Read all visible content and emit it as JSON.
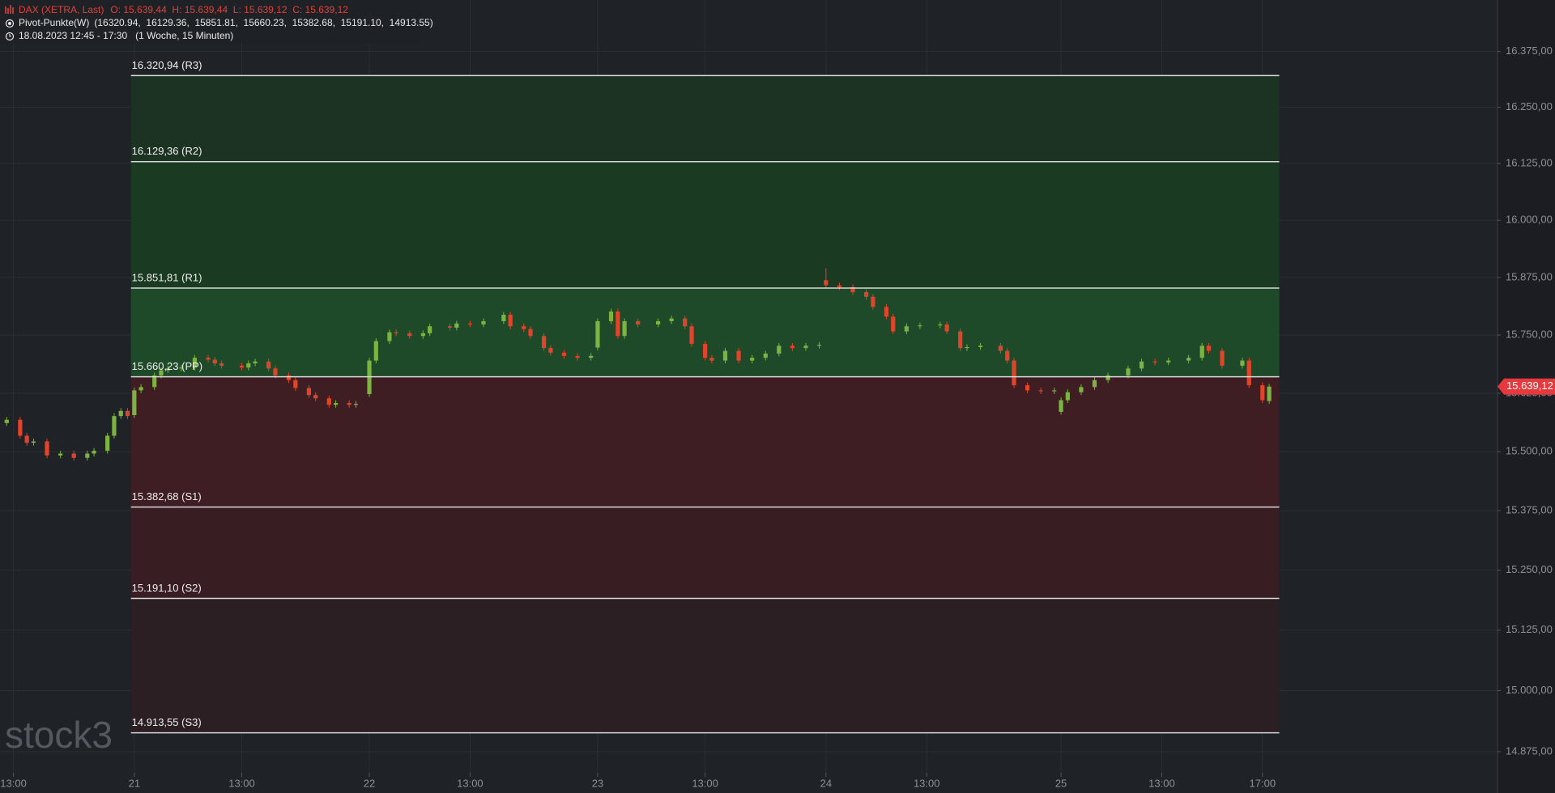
{
  "header": {
    "instrument": "DAX (XETRA, Last)",
    "ohlc": "O: 15.639,44  H: 15.639,44  L: 15.639,12  C: 15.639,12",
    "indicator": "Pivot-Punkte(W)",
    "indicator_values": "(16320.94,  16129.36,  15851.81,  15660.23,  15382.68,  15191.10,  14913.55)",
    "range": "18.08.2023 12:45 - 17:30",
    "interval": "(1 Woche, 15 Minuten)"
  },
  "watermark": "stock3",
  "chart_data": {
    "type": "candlestick",
    "x": [
      -19,
      -17,
      -16,
      -15,
      -13,
      -11,
      -9,
      -7,
      -6,
      -4,
      -3,
      -2,
      -1,
      0,
      1,
      3,
      4,
      5,
      7,
      9,
      11,
      12,
      13,
      16,
      17,
      18,
      20,
      21,
      23,
      24,
      26,
      27,
      29,
      30,
      32,
      33,
      35,
      36,
      38,
      39,
      41,
      43,
      44,
      47,
      48,
      50,
      52,
      55,
      56,
      58,
      59,
      61,
      62,
      64,
      66,
      68,
      69,
      71,
      72,
      73,
      75,
      78,
      80,
      82,
      83,
      85,
      86,
      88,
      90,
      92,
      94,
      96,
      98,
      100,
      102,
      103,
      105,
      107,
      109,
      110,
      112,
      113,
      115,
      117,
      120,
      121,
      123,
      124,
      126,
      129,
      130,
      131,
      133,
      135,
      137,
      138,
      139,
      141,
      143,
      145,
      148,
      150,
      152,
      154,
      157,
      159,
      160,
      162,
      165,
      166,
      168,
      169
    ],
    "open": [
      15561,
      15568,
      15534,
      15519,
      15522,
      15492,
      15496,
      15487,
      15496,
      15502,
      15534,
      15576,
      15587,
      15578,
      15631,
      15638,
      15663,
      15674,
      15678,
      15680,
      15701,
      15697,
      15689,
      15684,
      15680,
      15689,
      15693,
      15678,
      15663,
      15653,
      15636,
      15621,
      15614,
      15600,
      15604,
      15600,
      15623,
      15695,
      15737,
      15756,
      15754,
      15748,
      15754,
      15769,
      15766,
      15775,
      15773,
      15780,
      15794,
      15769,
      15763,
      15748,
      15722,
      15712,
      15705,
      15701,
      15723,
      15780,
      15801,
      15748,
      15780,
      15773,
      15780,
      15786,
      15769,
      15731,
      15701,
      15695,
      15716,
      15695,
      15701,
      15710,
      15727,
      15722,
      15727,
      15869,
      15858,
      15854,
      15843,
      15833,
      15811,
      15790,
      15758,
      15769,
      15771,
      15773,
      15758,
      15722,
      15724,
      15727,
      15716,
      15695,
      15642,
      15631,
      15629,
      15585,
      15610,
      15627,
      15638,
      15653,
      15663,
      15678,
      15693,
      15691,
      15695,
      15701,
      15727,
      15716,
      15684,
      15695,
      15642,
      15608
    ],
    "high": [
      15574,
      15574,
      15540,
      15528,
      15528,
      15502,
      15502,
      15502,
      15508,
      15540,
      15582,
      15593,
      15593,
      15637,
      15644,
      15669,
      15680,
      15684,
      15686,
      15707,
      15707,
      15703,
      15695,
      15690,
      15695,
      15699,
      15699,
      15684,
      15669,
      15659,
      15642,
      15627,
      15620,
      15610,
      15610,
      15608,
      15701,
      15743,
      15762,
      15762,
      15760,
      15760,
      15775,
      15775,
      15781,
      15781,
      15786,
      15800,
      15800,
      15775,
      15769,
      15754,
      15728,
      15718,
      15711,
      15711,
      15786,
      15807,
      15807,
      15786,
      15786,
      15786,
      15792,
      15792,
      15775,
      15737,
      15707,
      15722,
      15722,
      15707,
      15716,
      15733,
      15733,
      15733,
      15735,
      15895,
      15864,
      15860,
      15849,
      15839,
      15817,
      15796,
      15775,
      15777,
      15779,
      15779,
      15764,
      15730,
      15733,
      15733,
      15722,
      15701,
      15648,
      15637,
      15637,
      15616,
      15633,
      15644,
      15659,
      15669,
      15684,
      15699,
      15699,
      15701,
      15707,
      15733,
      15733,
      15722,
      15701,
      15701,
      15648,
      15645
    ],
    "low": [
      15555,
      15528,
      15513,
      15513,
      15486,
      15486,
      15481,
      15481,
      15490,
      15496,
      15528,
      15570,
      15570,
      15572,
      15625,
      15632,
      15657,
      15668,
      15672,
      15674,
      15691,
      15683,
      15678,
      15674,
      15674,
      15683,
      15672,
      15657,
      15647,
      15630,
      15615,
      15608,
      15594,
      15594,
      15594,
      15594,
      15617,
      15689,
      15731,
      15748,
      15742,
      15742,
      15748,
      15760,
      15760,
      15767,
      15767,
      15774,
      15763,
      15757,
      15742,
      15716,
      15706,
      15699,
      15695,
      15695,
      15717,
      15774,
      15742,
      15742,
      15767,
      15767,
      15774,
      15763,
      15725,
      15695,
      15689,
      15689,
      15689,
      15689,
      15695,
      15704,
      15716,
      15716,
      15721,
      15852,
      15848,
      15837,
      15827,
      15805,
      15784,
      15752,
      15752,
      15763,
      15765,
      15752,
      15716,
      15716,
      15718,
      15710,
      15689,
      15636,
      15625,
      15623,
      15623,
      15579,
      15604,
      15621,
      15632,
      15647,
      15657,
      15672,
      15685,
      15685,
      15689,
      15695,
      15710,
      15678,
      15678,
      15636,
      15604,
      15602
    ],
    "close": [
      15568,
      15534,
      15519,
      15522,
      15492,
      15496,
      15487,
      15496,
      15502,
      15534,
      15576,
      15587,
      15576,
      15631,
      15638,
      15663,
      15674,
      15678,
      15680,
      15701,
      15697,
      15689,
      15684,
      15680,
      15689,
      15693,
      15678,
      15663,
      15653,
      15636,
      15621,
      15614,
      15600,
      15604,
      15600,
      15602,
      15695,
      15737,
      15756,
      15754,
      15748,
      15754,
      15769,
      15766,
      15775,
      15773,
      15780,
      15794,
      15769,
      15763,
      15748,
      15722,
      15712,
      15705,
      15701,
      15705,
      15780,
      15801,
      15748,
      15780,
      15773,
      15780,
      15786,
      15769,
      15731,
      15701,
      15695,
      15716,
      15695,
      15701,
      15710,
      15727,
      15722,
      15727,
      15729,
      15858,
      15854,
      15843,
      15833,
      15811,
      15790,
      15758,
      15769,
      15771,
      15773,
      15758,
      15722,
      15724,
      15727,
      15716,
      15695,
      15642,
      15631,
      15629,
      15631,
      15610,
      15627,
      15638,
      15653,
      15663,
      15678,
      15693,
      15691,
      15695,
      15701,
      15727,
      15716,
      15684,
      15695,
      15642,
      15610,
      15639.12
    ],
    "up_color": "#7cb342",
    "down_color": "#e0452b",
    "xlim": [
      -20,
      203
    ],
    "xticks": [
      {
        "value": -18,
        "label": "13:00"
      },
      {
        "value": 0,
        "label": "21"
      },
      {
        "value": 16,
        "label": "13:00"
      },
      {
        "value": 35,
        "label": "22"
      },
      {
        "value": 50,
        "label": "13:00"
      },
      {
        "value": 69,
        "label": "23"
      },
      {
        "value": 85,
        "label": "13:00"
      },
      {
        "value": 103,
        "label": "24"
      },
      {
        "value": 118,
        "label": "13:00"
      },
      {
        "value": 138,
        "label": "25"
      },
      {
        "value": 153,
        "label": "13:00"
      },
      {
        "value": 168,
        "label": "17:00"
      }
    ],
    "ylim": [
      14832,
      16491
    ],
    "log_scale": true,
    "grid": true,
    "yticks": [
      {
        "value": 14875,
        "label": "14.875,00"
      },
      {
        "value": 15000,
        "label": "15.000,00"
      },
      {
        "value": 15125,
        "label": "15.125,00"
      },
      {
        "value": 15250,
        "label": "15.250,00"
      },
      {
        "value": 15375,
        "label": "15.375,00"
      },
      {
        "value": 15500,
        "label": "15.500,00"
      },
      {
        "value": 15625,
        "label": "15.625,00"
      },
      {
        "value": 15750,
        "label": "15.750,00"
      },
      {
        "value": 15875,
        "label": "15.875,00"
      },
      {
        "value": 16000,
        "label": "16.000,00"
      },
      {
        "value": 16125,
        "label": "16.125,00"
      },
      {
        "value": 16250,
        "label": "16.250,00"
      },
      {
        "value": 16375,
        "label": "16.375,00"
      }
    ],
    "last_price": {
      "value": 15639.12,
      "label": "15.639,12"
    },
    "pivots": [
      {
        "value": 16320.94,
        "label": "16.320,94 (R3)"
      },
      {
        "value": 16129.36,
        "label": "16.129,36 (R2)"
      },
      {
        "value": 15851.81,
        "label": "15.851,81 (R1)"
      },
      {
        "value": 15660.23,
        "label": "15.660,23 (PP)"
      },
      {
        "value": 15382.68,
        "label": "15.382,68 (S1)"
      },
      {
        "value": 15191.1,
        "label": "15.191,10 (S2)"
      },
      {
        "value": 14913.55,
        "label": "14.913,55 (S3)"
      }
    ]
  }
}
